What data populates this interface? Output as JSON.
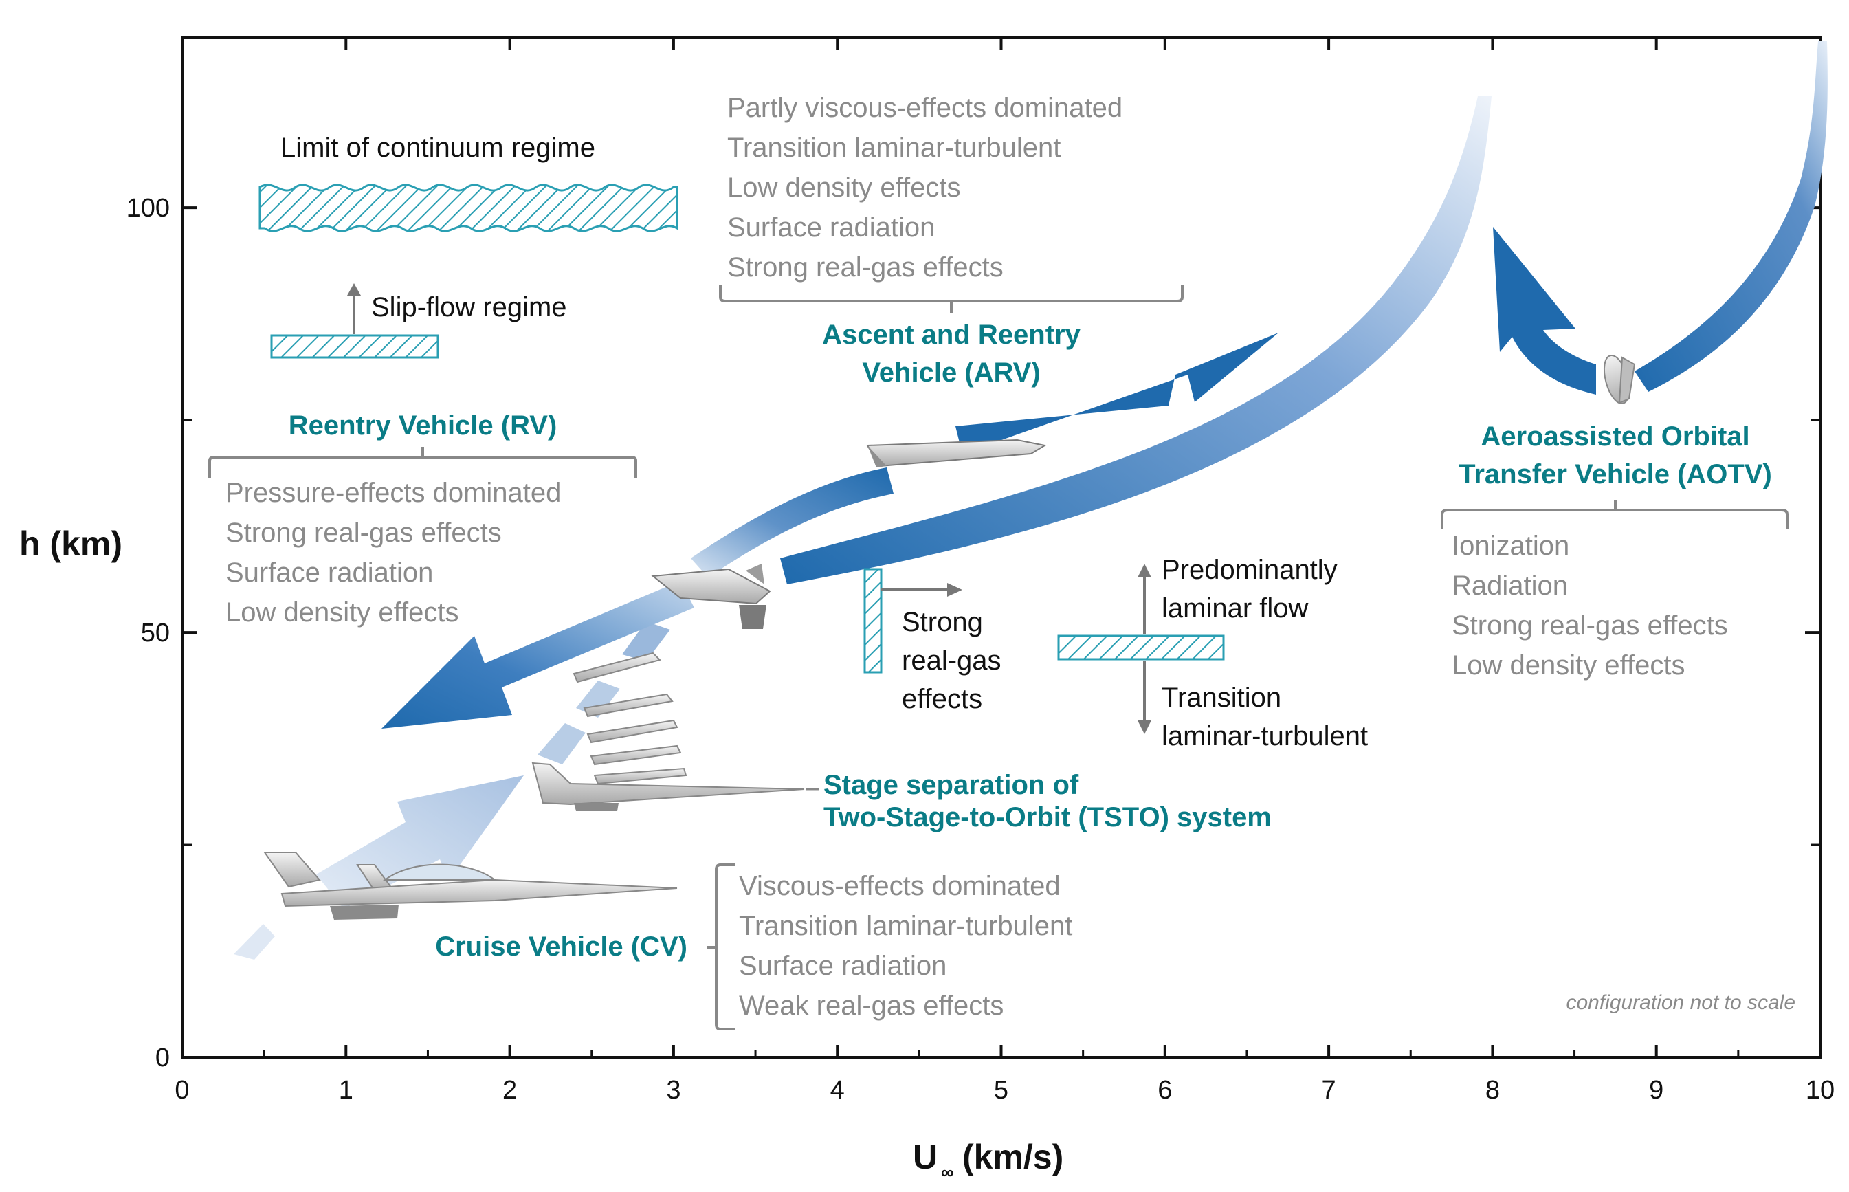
{
  "chart_data": {
    "type": "diagram",
    "xlabel": "U",
    "xlabel_sub": "∞",
    "xlabel_units": "(km/s)",
    "ylabel": "h (km)",
    "xlim": [
      0,
      10
    ],
    "ylim": [
      0,
      120
    ],
    "x_ticks": [
      "0",
      "1",
      "2",
      "3",
      "4",
      "5",
      "6",
      "7",
      "8",
      "9",
      "10"
    ],
    "y_ticks": [
      "0",
      "50",
      "100"
    ],
    "continuum_label": "Limit of continuum regime",
    "slip_label": "Slip-flow regime",
    "vehicles": [
      {
        "id": "rv",
        "lines": [
          "Reentry Vehicle (RV)"
        ],
        "effects": [
          "Pressure-effects dominated",
          "Strong real-gas effects",
          "Surface radiation",
          "Low density effects"
        ]
      },
      {
        "id": "arv",
        "lines": [
          "Ascent and Reentry",
          "Vehicle (ARV)"
        ],
        "effects": [
          "Partly viscous-effects dominated",
          "Transition laminar-turbulent",
          "Low density effects",
          "Surface radiation",
          "Strong real-gas effects"
        ]
      },
      {
        "id": "aotv",
        "lines": [
          "Aeroassisted Orbital",
          "Transfer Vehicle (AOTV)"
        ],
        "effects": [
          "Ionization",
          "Radiation",
          "Strong real-gas effects",
          "Low density effects"
        ]
      },
      {
        "id": "tsto",
        "lines": [
          "Stage separation of",
          "Two-Stage-to-Orbit (TSTO) system"
        ]
      },
      {
        "id": "cv",
        "lines": [
          "Cruise Vehicle (CV)"
        ],
        "effects": [
          "Viscous-effects dominated",
          "Transition laminar-turbulent",
          "Surface radiation",
          "Weak real-gas effects"
        ]
      }
    ],
    "wall_label": [
      "Strong",
      "real-gas",
      "effects"
    ],
    "laminar_label": [
      "Predominantly",
      "laminar flow"
    ],
    "turbulent_label": [
      "Transition",
      "laminar-turbulent"
    ],
    "note": "configuration not to scale"
  },
  "colors": {
    "teal": "#0a7c86",
    "blue_dark": "#1f6aad",
    "blue_light": "#c8d8ec",
    "hatch": "#2a9fb3",
    "gray_text": "#8a8a8a"
  }
}
